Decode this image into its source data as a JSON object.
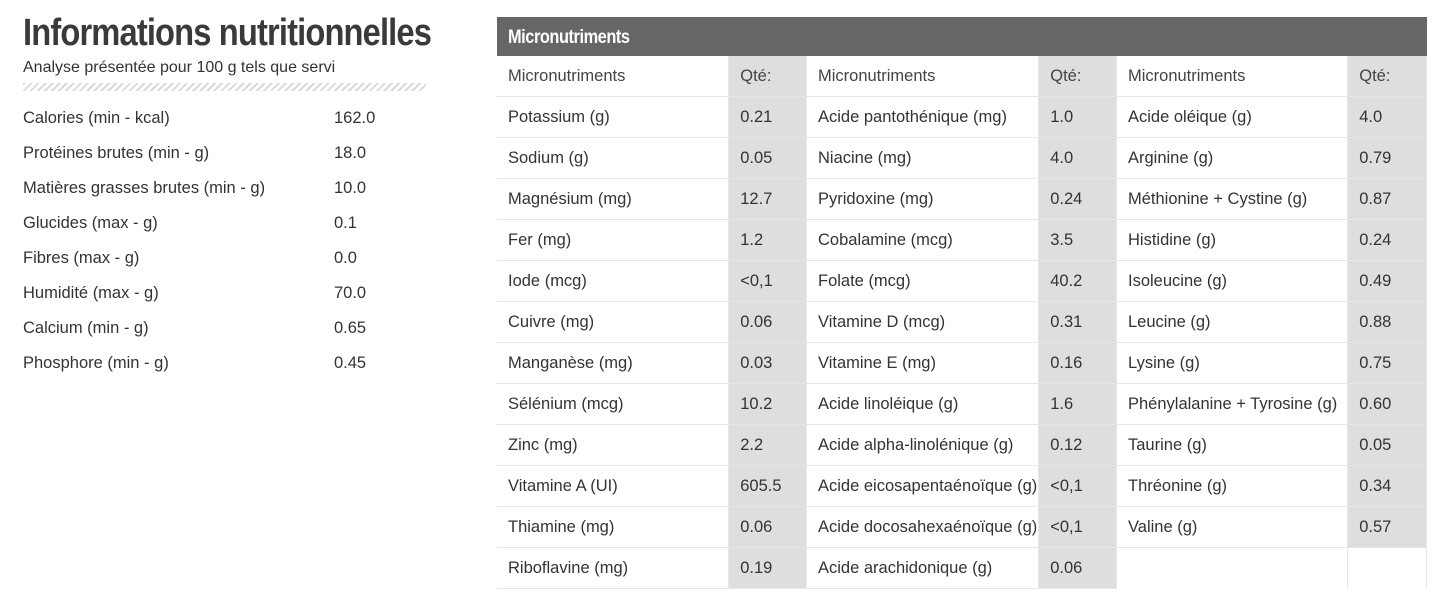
{
  "nutrition": {
    "title": "Informations nutritionnelles",
    "subtitle": "Analyse présentée pour 100 g tels que servi",
    "rows": [
      {
        "label": "Calories (min - kcal)",
        "value": "162.0"
      },
      {
        "label": "Protéines brutes (min - g)",
        "value": "18.0"
      },
      {
        "label": "Matières grasses brutes (min - g)",
        "value": "10.0"
      },
      {
        "label": "Glucides (max - g)",
        "value": "0.1"
      },
      {
        "label": "Fibres (max - g)",
        "value": "0.0"
      },
      {
        "label": "Humidité (max - g)",
        "value": "70.0"
      },
      {
        "label": "Calcium (min - g)",
        "value": "0.65"
      },
      {
        "label": "Phosphore (min - g)",
        "value": "0.45"
      }
    ]
  },
  "micro": {
    "title": "Micronutriments",
    "columns": [
      {
        "name_header": "Micronutriments",
        "qty_header": "Qté:",
        "rows": [
          {
            "name": "Potassium (g)",
            "qty": "0.21"
          },
          {
            "name": "Sodium (g)",
            "qty": "0.05"
          },
          {
            "name": "Magnésium (mg)",
            "qty": "12.7"
          },
          {
            "name": "Fer (mg)",
            "qty": "1.2"
          },
          {
            "name": "Iode (mcg)",
            "qty": "<0,1"
          },
          {
            "name": "Cuivre (mg)",
            "qty": "0.06"
          },
          {
            "name": "Manganèse (mg)",
            "qty": "0.03"
          },
          {
            "name": "Sélénium (mcg)",
            "qty": "10.2"
          },
          {
            "name": "Zinc (mg)",
            "qty": "2.2"
          },
          {
            "name": "Vitamine A (UI)",
            "qty": "605.5"
          },
          {
            "name": "Thiamine (mg)",
            "qty": "0.06"
          },
          {
            "name": "Riboflavine (mg)",
            "qty": "0.19"
          }
        ]
      },
      {
        "name_header": "Micronutriments",
        "qty_header": "Qté:",
        "rows": [
          {
            "name": "Acide pantothénique (mg)",
            "qty": "1.0"
          },
          {
            "name": "Niacine (mg)",
            "qty": "4.0"
          },
          {
            "name": "Pyridoxine (mg)",
            "qty": "0.24"
          },
          {
            "name": "Cobalamine (mcg)",
            "qty": "3.5"
          },
          {
            "name": "Folate (mcg)",
            "qty": "40.2"
          },
          {
            "name": "Vitamine D (mcg)",
            "qty": "0.31"
          },
          {
            "name": "Vitamine E (mg)",
            "qty": "0.16"
          },
          {
            "name": "Acide linoléique (g)",
            "qty": "1.6"
          },
          {
            "name": "Acide alpha-linolénique (g)",
            "qty": "0.12"
          },
          {
            "name": "Acide eicosapentaénoïque (g)",
            "qty": "<0,1"
          },
          {
            "name": "Acide docosahexaénoïque (g)",
            "qty": "<0,1"
          },
          {
            "name": "Acide arachidonique (g)",
            "qty": "0.06"
          }
        ]
      },
      {
        "name_header": "Micronutriments",
        "qty_header": "Qté:",
        "rows": [
          {
            "name": "Acide oléique (g)",
            "qty": "4.0"
          },
          {
            "name": "Arginine (g)",
            "qty": "0.79"
          },
          {
            "name": "Méthionine + Cystine (g)",
            "qty": "0.87"
          },
          {
            "name": "Histidine (g)",
            "qty": "0.24"
          },
          {
            "name": "Isoleucine (g)",
            "qty": "0.49"
          },
          {
            "name": "Leucine (g)",
            "qty": "0.88"
          },
          {
            "name": "Lysine (g)",
            "qty": "0.75"
          },
          {
            "name": "Phénylalanine + Tyrosine (g)",
            "qty": "0.60"
          },
          {
            "name": "Taurine (g)",
            "qty": "0.05"
          },
          {
            "name": "Thréonine (g)",
            "qty": "0.34"
          },
          {
            "name": "Valine (g)",
            "qty": "0.57"
          }
        ]
      }
    ]
  },
  "colors": {
    "header_bg": "#666666",
    "qty_bg": "#dedede",
    "text": "#333333"
  }
}
